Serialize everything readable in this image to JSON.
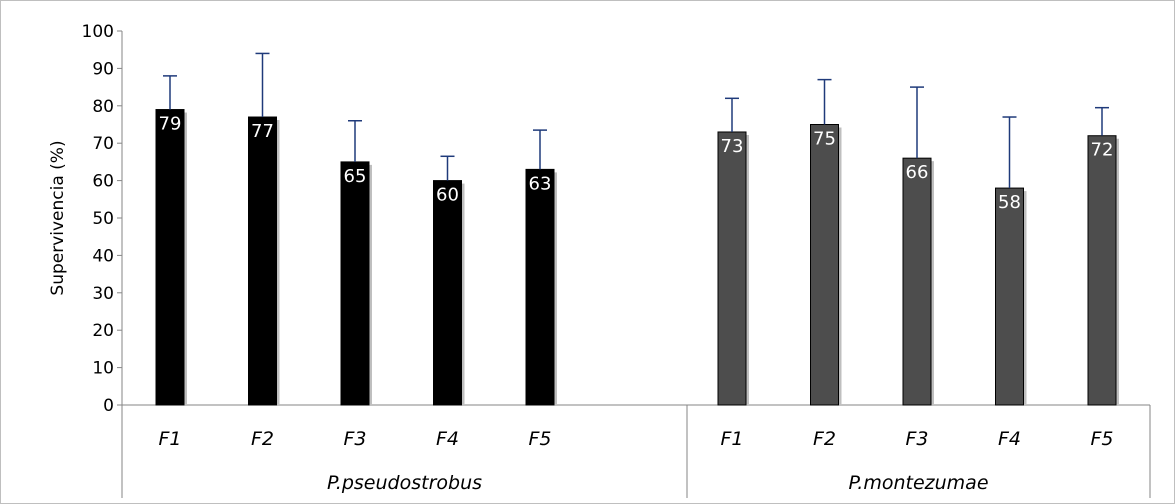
{
  "chart_data": {
    "type": "bar",
    "ylabel": "Supervivencia (%)",
    "ylim": [
      0,
      100
    ],
    "yticks": [
      0,
      10,
      20,
      30,
      40,
      50,
      60,
      70,
      80,
      90,
      100
    ],
    "grid": false,
    "legend": "none",
    "groups": [
      {
        "name": "P.pseudostrobus",
        "color": "#000000",
        "categories": [
          "F1",
          "F2",
          "F3",
          "F4",
          "F5"
        ],
        "values": [
          79,
          77,
          65,
          60,
          63
        ],
        "labels": [
          "79",
          "77",
          "65",
          "60",
          "63"
        ],
        "error_upper": [
          88,
          94,
          76,
          66.5,
          73.5
        ]
      },
      {
        "name": "P.montezumae",
        "color": "#4d4d4d",
        "categories": [
          "F1",
          "F2",
          "F3",
          "F4",
          "F5"
        ],
        "values": [
          73,
          75,
          66,
          58,
          72
        ],
        "labels": [
          "73",
          "75",
          "66",
          "58",
          "72"
        ],
        "error_upper": [
          82,
          87,
          85,
          77,
          79.5
        ]
      }
    ],
    "error_bar_color": "#1f3a7a"
  }
}
